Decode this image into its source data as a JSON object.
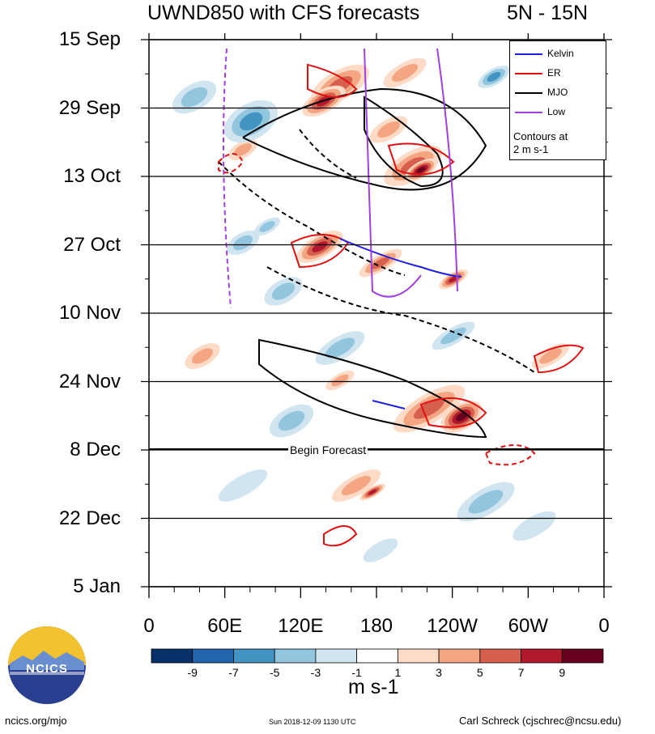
{
  "title": "UWND850 with CFS forecasts",
  "region": "5N - 15N",
  "chart_data": {
    "type": "heatmap",
    "title": "UWND850 with CFS forecasts",
    "subtitle": "5N - 15N",
    "xlabel": "",
    "ylabel": "",
    "x_ticks": [
      "0",
      "60E",
      "120E",
      "180",
      "120W",
      "60W",
      "0"
    ],
    "y_ticks": [
      "15 Sep",
      "29 Sep",
      "13 Oct",
      "27 Oct",
      "10 Nov",
      "24 Nov",
      "8 Dec",
      "22 Dec",
      "5 Jan"
    ],
    "forecast_start": "8 Dec",
    "forecast_label": "Begin Forecast",
    "colorbar": {
      "units": "m s-1",
      "tick_labels": [
        "-9",
        "-7",
        "-5",
        "-3",
        "-1",
        "1",
        "3",
        "5",
        "7",
        "9"
      ],
      "colors": [
        "#08306b",
        "#2166ac",
        "#4393c3",
        "#92c5de",
        "#d1e5f0",
        "#ffffff",
        "#fddbc7",
        "#f4a582",
        "#d6604d",
        "#b2182b",
        "#67001f"
      ]
    },
    "series": [
      {
        "name": "Kelvin",
        "color": "#2020e0"
      },
      {
        "name": "ER",
        "color": "#e01010"
      },
      {
        "name": "MJO",
        "color": "#000000"
      },
      {
        "name": "Low",
        "color": "#a040e0"
      }
    ],
    "legend_note": [
      "Contours at",
      "2 m s-1"
    ],
    "legend_position": "top-right"
  },
  "footer": {
    "left": "ncics.org/mjo",
    "middle": "Sun 2018-12-09 1130 UTC",
    "right": "Carl Schreck (cjschrec@ncsu.edu)"
  },
  "logo_text": "NCICS"
}
